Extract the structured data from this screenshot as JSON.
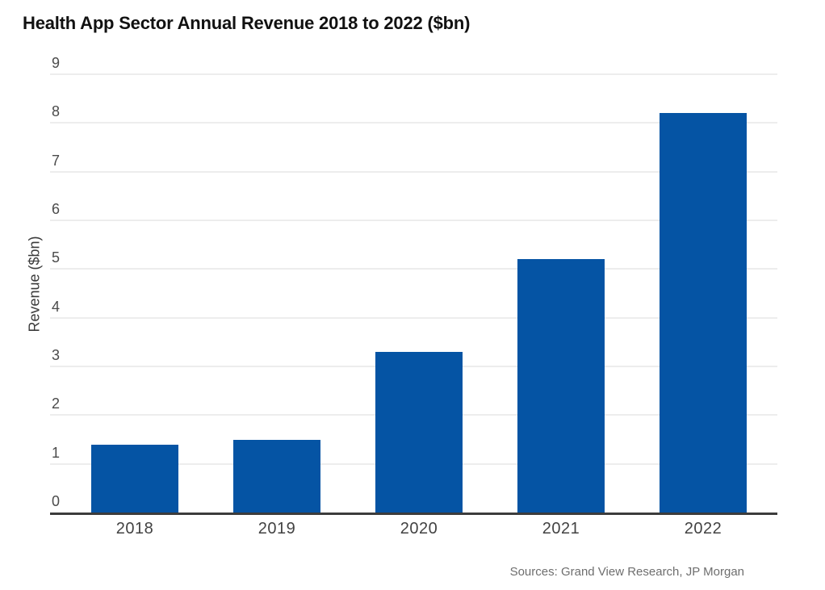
{
  "title": "Health App Sector Annual Revenue 2018 to 2022 ($bn)",
  "chart_data": {
    "type": "bar",
    "title": "Health App Sector Annual Revenue 2018 to 2022 ($bn)",
    "categories": [
      "2018",
      "2019",
      "2020",
      "2021",
      "2022"
    ],
    "values": [
      1.4,
      1.5,
      3.3,
      5.2,
      8.2
    ],
    "xlabel": "",
    "ylabel": "Revenue ($bn)",
    "ylim": [
      0,
      9
    ],
    "yticks": [
      0,
      1,
      2,
      3,
      4,
      5,
      6,
      7,
      8,
      9
    ],
    "grid": true,
    "legend": false,
    "source": "Sources: Grand View Research, JP Morgan",
    "colors": {
      "bar": "#0554a4",
      "title_text": "#111111",
      "tick_text": "#4b4b4b",
      "xlabel_text": "#424242",
      "axis_title_text": "#3a3a3a",
      "axis_line": "#3c3c3c",
      "gridline": "#ededed",
      "source_text": "#6e6e6e",
      "background": "#ffffff"
    }
  }
}
